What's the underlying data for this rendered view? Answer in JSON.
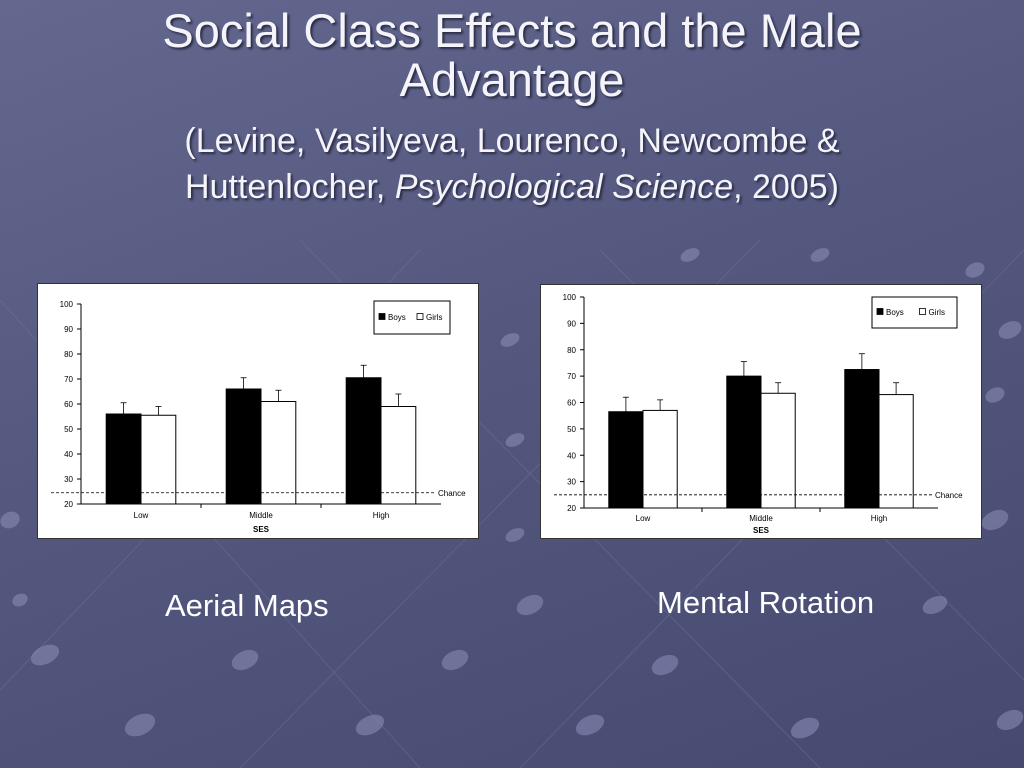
{
  "slide": {
    "title": "Social Class Effects and the Male Advantage",
    "citation_authors": "(Levine, Vasilyeva, Lourenco, Newcombe & Huttenlocher,",
    "citation_journal": "Psychological Science",
    "citation_tail": ", 2005)",
    "colors": {
      "background": "#585c84",
      "title_text": "#f4f4fa",
      "boys": "#000000",
      "girls": "#ffffff"
    }
  },
  "captions": {
    "left": "Aerial Maps",
    "right": "Mental Rotation"
  },
  "chart_data": [
    {
      "type": "bar",
      "caption": "Aerial Maps",
      "categories": [
        "Low",
        "Middle",
        "High"
      ],
      "series": [
        {
          "name": "Boys",
          "values": [
            56,
            66,
            70.5
          ],
          "error": [
            4.5,
            4.5,
            5
          ]
        },
        {
          "name": "Girls",
          "values": [
            55.5,
            61,
            59
          ],
          "error": [
            3.5,
            4.5,
            5
          ]
        }
      ],
      "yticks": [
        20,
        30,
        40,
        50,
        60,
        70,
        80,
        90,
        100
      ],
      "ylim": [
        20,
        100
      ],
      "xlabel": "SES",
      "reference_line": {
        "value": 24.5,
        "label": "Chance"
      },
      "legend_position": "top-right"
    },
    {
      "type": "bar",
      "caption": "Mental Rotation",
      "categories": [
        "Low",
        "Middle",
        "High"
      ],
      "series": [
        {
          "name": "Boys",
          "values": [
            56.5,
            70,
            72.5
          ],
          "error": [
            5.5,
            5.5,
            6
          ]
        },
        {
          "name": "Girls",
          "values": [
            57,
            63.5,
            63
          ],
          "error": [
            4,
            4,
            4.5
          ]
        }
      ],
      "yticks": [
        20,
        30,
        40,
        50,
        60,
        70,
        80,
        90,
        100
      ],
      "ylim": [
        20,
        100
      ],
      "xlabel": "SES",
      "reference_line": {
        "value": 25,
        "label": "Chance"
      },
      "legend_position": "top-right"
    }
  ]
}
